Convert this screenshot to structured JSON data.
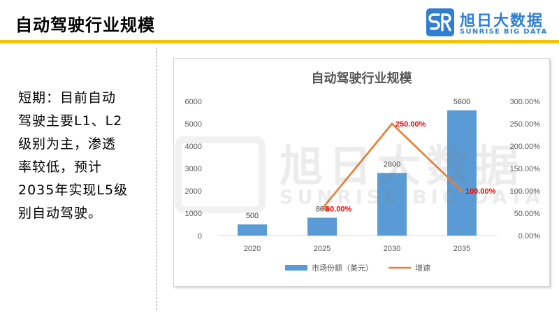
{
  "slide": {
    "title": "自动驾驶行业规模"
  },
  "logo": {
    "cn": "旭日大数据",
    "en": "SUNRISE BIG DATA"
  },
  "body_lines": [
    "短期：目前自动",
    "驾驶主要L1、L2",
    "级别为主，渗透",
    "率较低，预计",
    "2035年实现L5级",
    "别自动驾驶。"
  ],
  "watermark": {
    "cn": "旭日大数据",
    "en": "SUNRISE BIG DATA"
  },
  "chart_data": {
    "type": "bar",
    "title": "自动驾驶行业规模",
    "categories": [
      "2020",
      "2025",
      "2030",
      "2035"
    ],
    "series": [
      {
        "name": "市场份额（美元）",
        "type": "bar",
        "axis": "left",
        "values": [
          500,
          800,
          2800,
          5600
        ],
        "labels": [
          "500",
          "800",
          "2800",
          "5600"
        ],
        "color": "#5b9bd5"
      },
      {
        "name": "增速",
        "type": "line",
        "axis": "right",
        "values": [
          null,
          60,
          250,
          100
        ],
        "labels": [
          null,
          "60.00%",
          "250.00%",
          "100.00%"
        ],
        "color": "#ed7d31",
        "label_color": "#ff0000"
      }
    ],
    "y_left": {
      "min": 0,
      "max": 6000,
      "ticks": [
        "0",
        "1000",
        "2000",
        "3000",
        "4000",
        "5000",
        "6000"
      ]
    },
    "y_right": {
      "min": 0,
      "max": 300,
      "ticks": [
        "0.00%",
        "50.00%",
        "100.00%",
        "150.00%",
        "200.00%",
        "250.00%",
        "300.00%"
      ]
    },
    "grid": false,
    "legend_position": "bottom"
  }
}
